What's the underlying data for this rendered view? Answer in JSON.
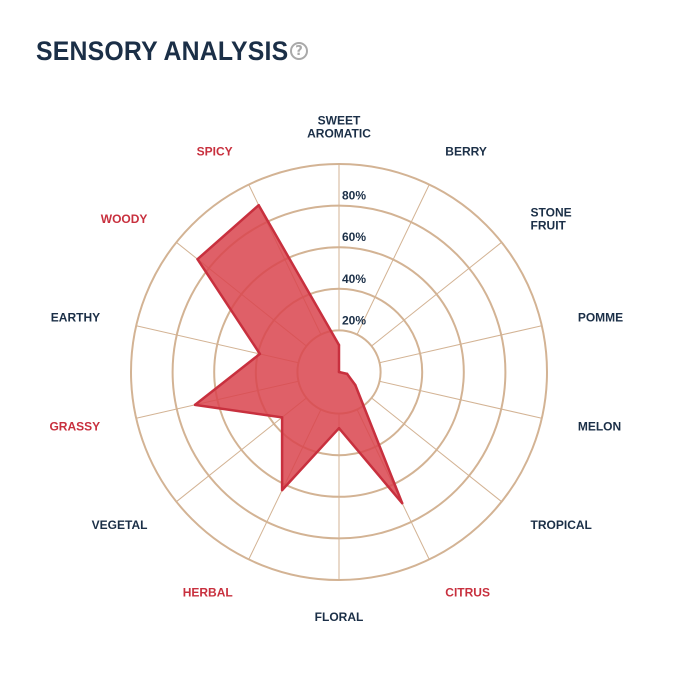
{
  "header": {
    "title": "SENSORY ANALYSIS",
    "help_icon": "?"
  },
  "colors": {
    "highlight": "#c8303e",
    "normal_label": "#1b2f47",
    "grid": "#d3b394",
    "fill": "#d9444e",
    "stroke": "#c8303e"
  },
  "chart_data": {
    "type": "radar",
    "title": "SENSORY ANALYSIS",
    "rmax": 100,
    "ticks": [
      {
        "value": 20,
        "label": "20%"
      },
      {
        "value": 40,
        "label": "40%"
      },
      {
        "value": 60,
        "label": "60%"
      },
      {
        "value": 80,
        "label": "80%"
      }
    ],
    "grid_rings": [
      20,
      40,
      60,
      80,
      100
    ],
    "axes": [
      {
        "label": [
          "SWEET",
          "AROMATIC"
        ],
        "value": 13,
        "highlight": false
      },
      {
        "label": [
          "BERRY"
        ],
        "value": 0,
        "highlight": false
      },
      {
        "label": [
          "STONE",
          "FRUIT"
        ],
        "value": 0,
        "highlight": false
      },
      {
        "label": [
          "POMME"
        ],
        "value": 0,
        "highlight": false
      },
      {
        "label": [
          "MELON"
        ],
        "value": 4,
        "highlight": false
      },
      {
        "label": [
          "TROPICAL"
        ],
        "value": 10,
        "highlight": false
      },
      {
        "label": [
          "CITRUS"
        ],
        "value": 70,
        "highlight": true
      },
      {
        "label": [
          "FLORAL"
        ],
        "value": 27,
        "highlight": false
      },
      {
        "label": [
          "HERBAL"
        ],
        "value": 63,
        "highlight": true
      },
      {
        "label": [
          "VEGETAL"
        ],
        "value": 35,
        "highlight": false
      },
      {
        "label": [
          "GRASSY"
        ],
        "value": 71,
        "highlight": true
      },
      {
        "label": [
          "EARTHY"
        ],
        "value": 39,
        "highlight": false
      },
      {
        "label": [
          "WOODY"
        ],
        "value": 87,
        "highlight": true
      },
      {
        "label": [
          "SPICY"
        ],
        "value": 89,
        "highlight": true
      }
    ]
  }
}
